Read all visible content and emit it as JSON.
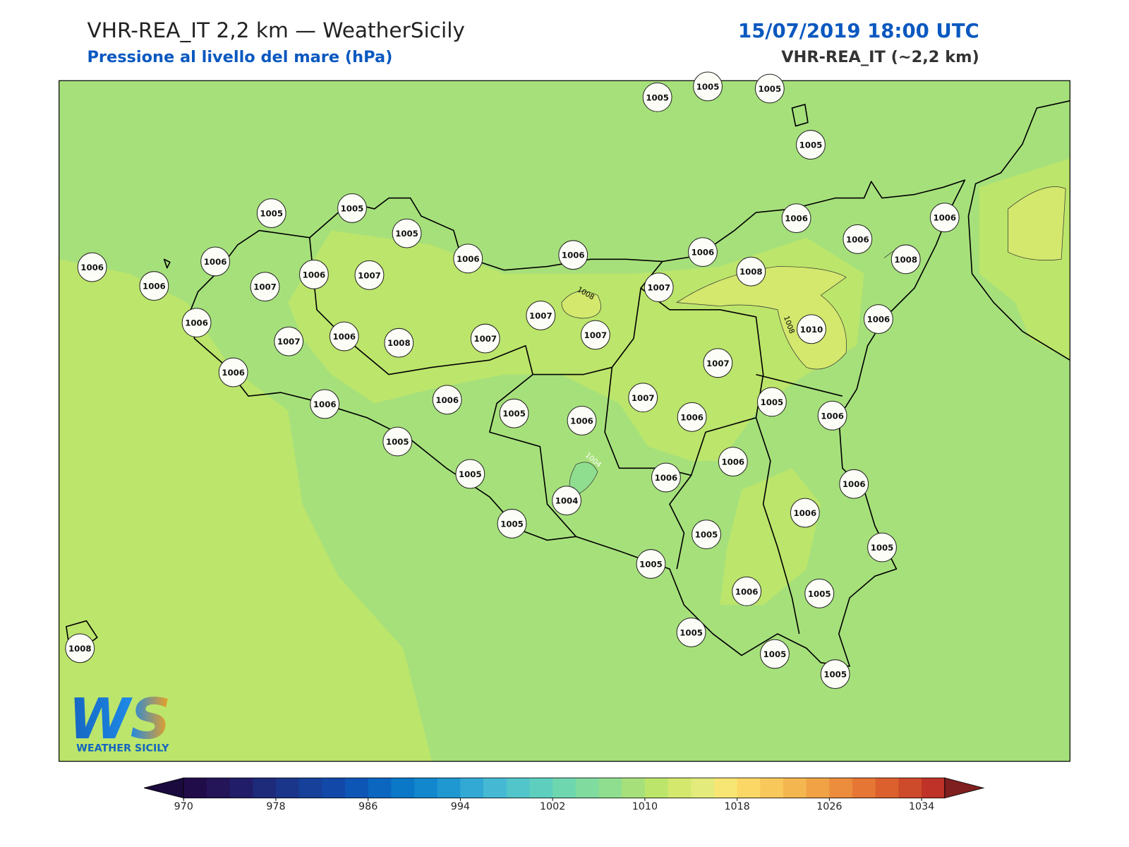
{
  "header": {
    "title": "VHR-REA_IT 2,2 km — WeatherSicily",
    "subtitle": "Pressione al livello del mare (hPa)",
    "timestamp": "15/07/2019 18:00 UTC",
    "model": "VHR-REA_IT (~2,2 km)"
  },
  "stations": [
    1005,
    1005,
    1005,
    1005,
    1005,
    1005,
    1005,
    1006,
    1006,
    1006,
    1006,
    1006,
    1006,
    1008,
    1006,
    1006,
    1006,
    1007,
    1006,
    1007,
    1007,
    1008,
    1006,
    1007,
    1006,
    1008,
    1007,
    1007,
    1007,
    1010,
    1006,
    1006,
    1007,
    1006,
    1006,
    1005,
    1006,
    1007,
    1006,
    1005,
    1006,
    1005,
    1005,
    1004,
    1006,
    1006,
    1006,
    1006,
    1005,
    1005,
    1005,
    1005,
    1006,
    1005,
    1005,
    1005,
    1005,
    1008
  ],
  "contour_labels": [
    "1008",
    "1008",
    "1004"
  ],
  "colorbar": {
    "lim": [
      970,
      1036
    ],
    "ticks": [
      970,
      978,
      986,
      994,
      1002,
      1010,
      1018,
      1026,
      1034
    ],
    "colors": [
      "#210c4a",
      "#241458",
      "#221d68",
      "#1e2a7a",
      "#1a368a",
      "#16409a",
      "#1249a8",
      "#0e56b5",
      "#0b66c0",
      "#0b77c7",
      "#1287cd",
      "#1f97d1",
      "#32a9d4",
      "#45b9d3",
      "#52c5cb",
      "#5ecfbf",
      "#6ed7af",
      "#80dc9e",
      "#8fde8f",
      "#a6e07b",
      "#bce56b",
      "#d4e86d",
      "#e2eb7c",
      "#f8e674",
      "#fbd865",
      "#f8c85a",
      "#f4b64f",
      "#f0a245",
      "#eb8d3c",
      "#e57633",
      "#dc602d",
      "#cd4a2a",
      "#bf3227"
    ],
    "under": "#1b0a3d",
    "over": "#7f1f1f"
  },
  "logo": {
    "mark": "WS",
    "name": "WEATHER SICILY"
  }
}
